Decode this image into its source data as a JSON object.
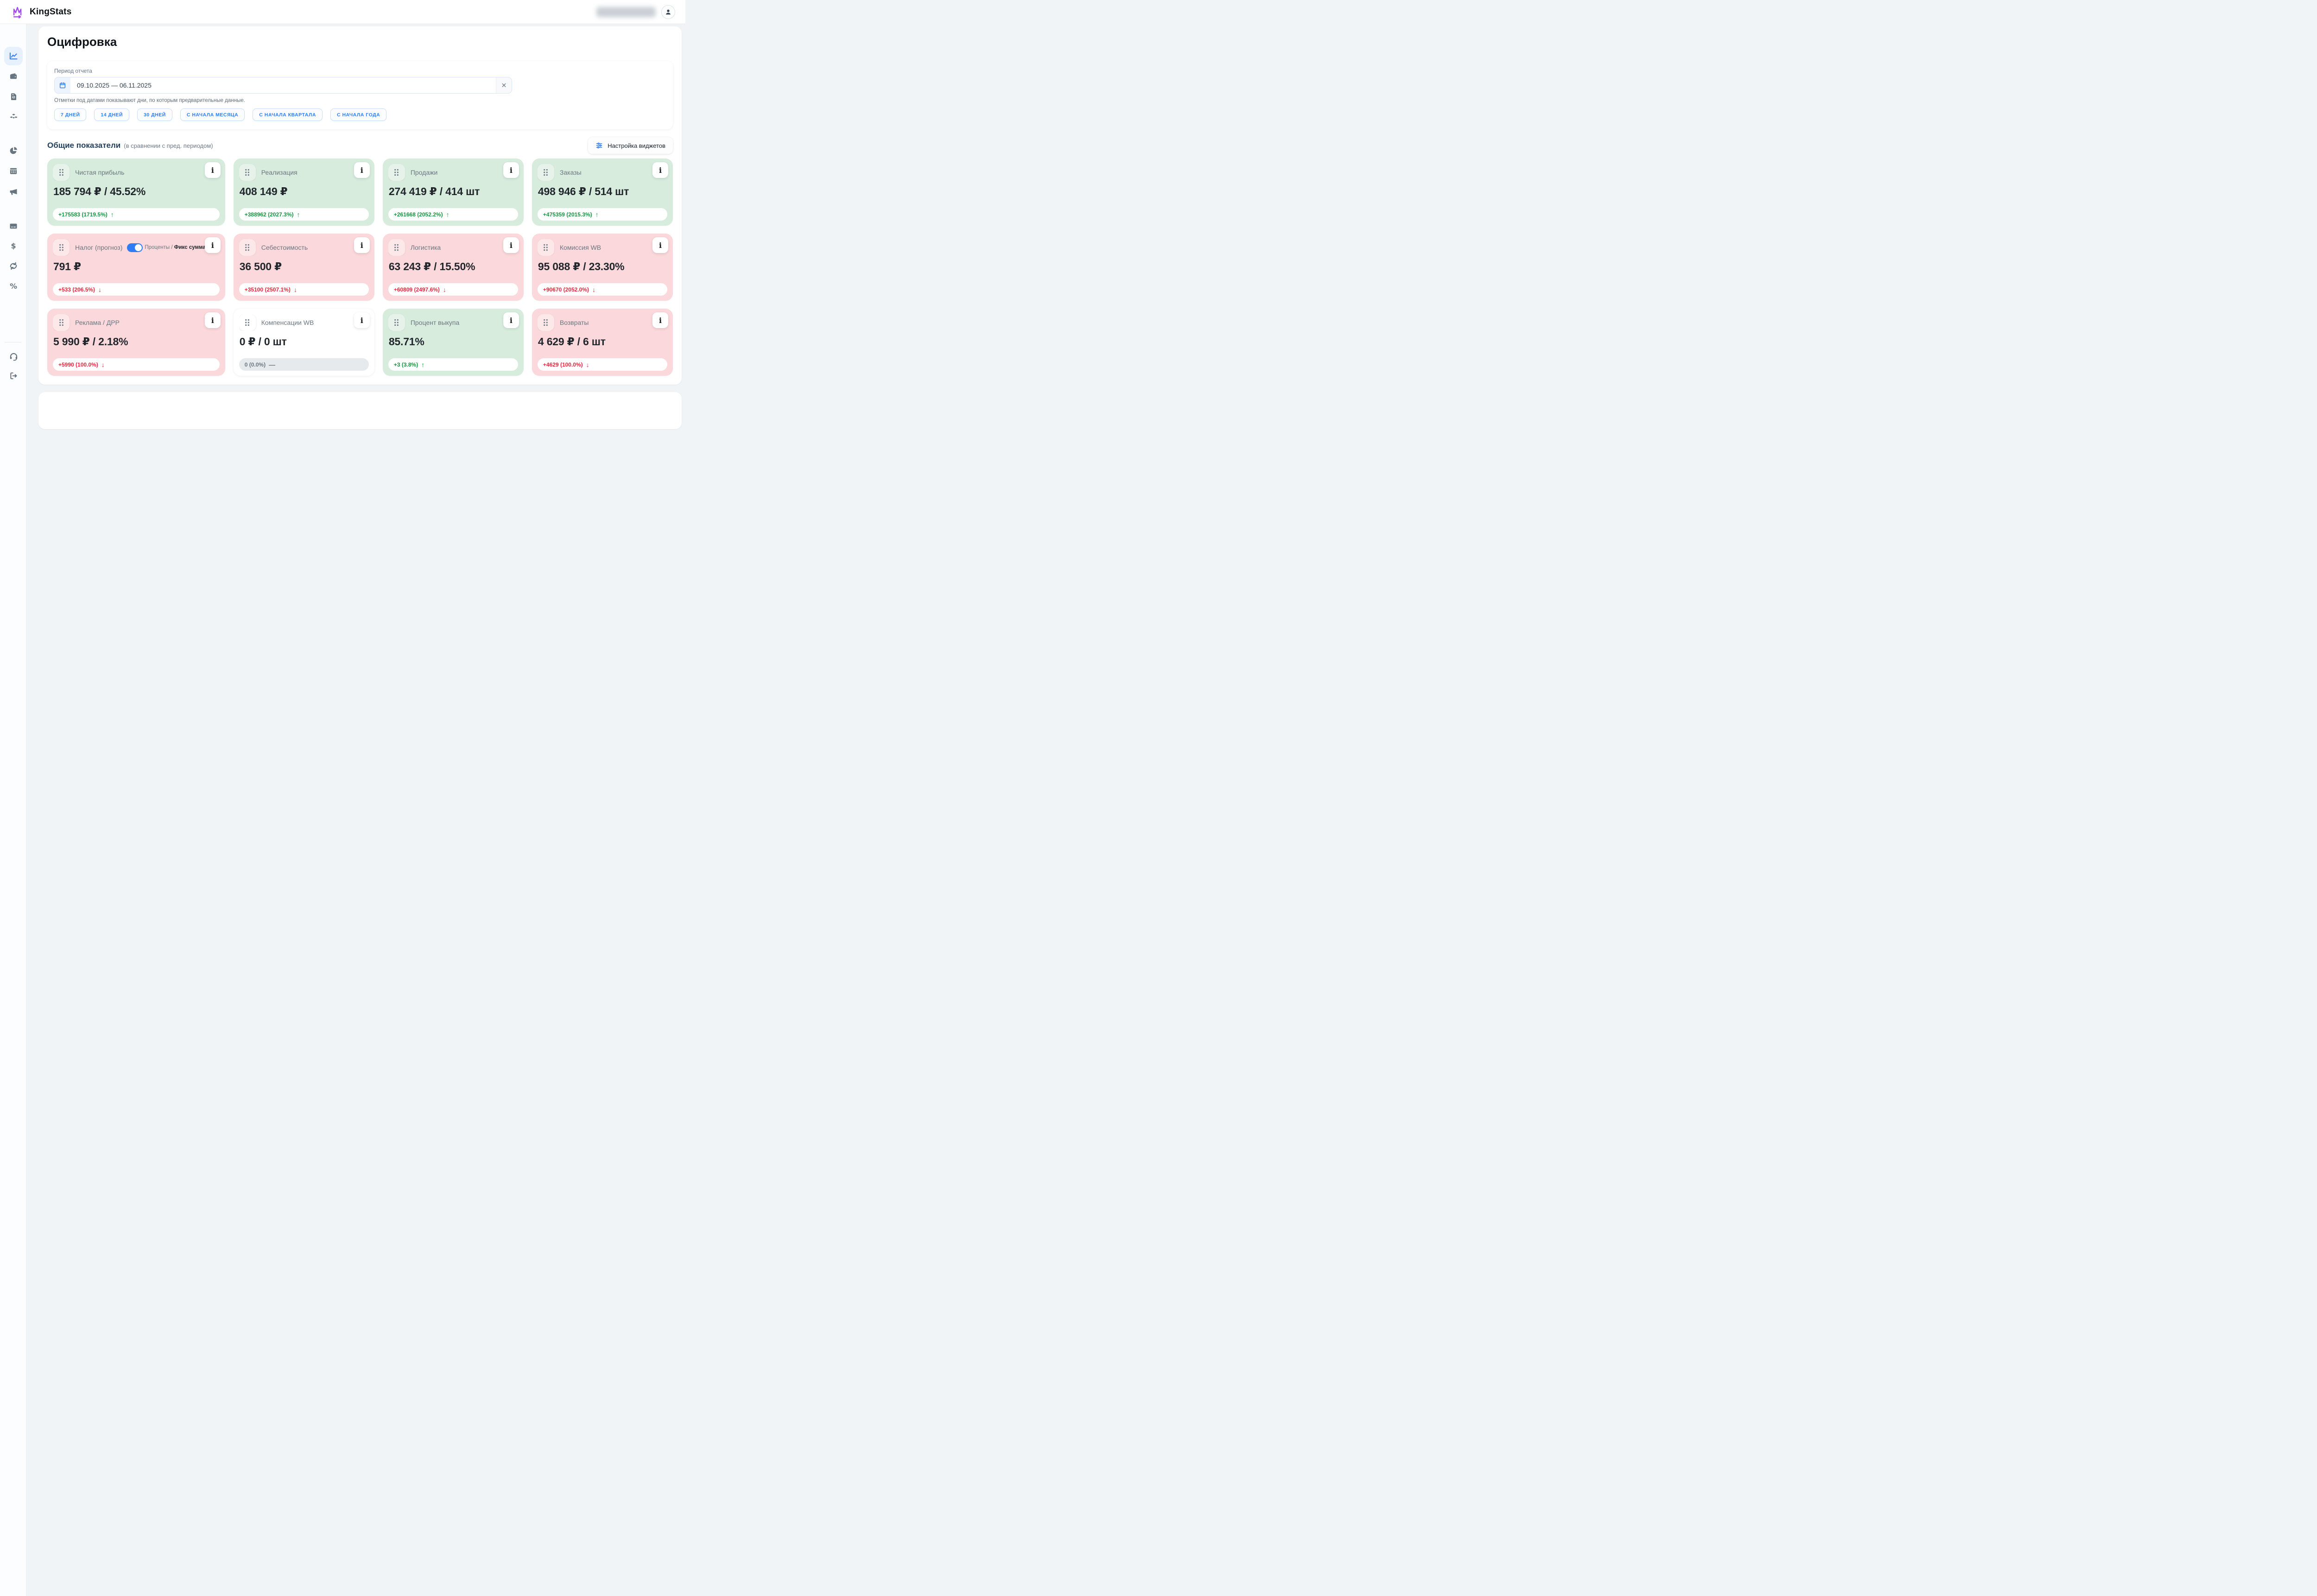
{
  "header": {
    "brand": "KingStats",
    "icons": [
      "crown-chart-logo",
      "user-avatar"
    ]
  },
  "sidebar": {
    "active": "line-chart",
    "icons": [
      "line-chart",
      "wallet",
      "receipt",
      "boxes",
      "pie-chart",
      "calendar",
      "megaphone",
      "credit-card",
      "dollar",
      "refresh",
      "percent",
      "headset",
      "logout"
    ]
  },
  "page": {
    "title": "Оцифровка",
    "period": {
      "label": "Период отчета",
      "value": "09.10.2025 — 06.11.2025",
      "hint": "Отметки под датами показывают дни, по которым предварительные данные.",
      "quick_ranges": [
        "7 ДНЕЙ",
        "14 ДНЕЙ",
        "30 ДНЕЙ",
        "С НАЧАЛА МЕСЯЦА",
        "С НАЧАЛА КВАРТАЛА",
        "С НАЧАЛА ГОДА"
      ]
    },
    "metrics_section": {
      "title": "Общие показатели",
      "subtitle": "(в сравнении с пред. периодом)",
      "widgets_button": "Настройка виджетов",
      "cards": [
        {
          "title": "Чистая прибыль",
          "value": "185 794 ₽ / 45.52%",
          "delta": "+175583 (1719.5%)",
          "trend": "up",
          "tone": "positive"
        },
        {
          "title": "Реализация",
          "value": "408 149 ₽",
          "delta": "+388962 (2027.3%)",
          "trend": "up",
          "tone": "positive"
        },
        {
          "title": "Продажи",
          "value": "274 419 ₽ / 414 шт",
          "delta": "+261668 (2052.2%)",
          "trend": "up",
          "tone": "positive"
        },
        {
          "title": "Заказы",
          "value": "498 946 ₽ / 514 шт",
          "delta": "+475359 (2015.3%)",
          "trend": "up",
          "tone": "positive"
        },
        {
          "title": "Налог (прогноз)",
          "value": "791 ₽",
          "delta": "+533 (206.5%)",
          "trend": "down",
          "tone": "negative",
          "toggle": {
            "on": true,
            "label_left": "Проценты",
            "separator": " / ",
            "label_right": "Фикс сумма"
          }
        },
        {
          "title": "Себестоимость",
          "value": "36 500 ₽",
          "delta": "+35100 (2507.1%)",
          "trend": "down",
          "tone": "negative"
        },
        {
          "title": "Логистика",
          "value": "63 243 ₽ / 15.50%",
          "delta": "+60809 (2497.6%)",
          "trend": "down",
          "tone": "negative"
        },
        {
          "title": "Комиссия WB",
          "value": "95 088 ₽ / 23.30%",
          "delta": "+90670 (2052.0%)",
          "trend": "down",
          "tone": "negative"
        },
        {
          "title": "Реклама / ДРР",
          "value": "5 990 ₽ / 2.18%",
          "delta": "+5990 (100.0%)",
          "trend": "down",
          "tone": "negative"
        },
        {
          "title": "Компенсации WB",
          "value": "0 ₽ / 0 шт",
          "delta": "0 (0.0%)",
          "trend": "flat",
          "tone": "neutral"
        },
        {
          "title": "Процент выкупа",
          "value": "85.71%",
          "delta": "+3 (3.8%)",
          "trend": "up",
          "tone": "positive"
        },
        {
          "title": "Возвраты",
          "value": "4 629 ₽ / 6 шт",
          "delta": "+4629 (100.0%)",
          "trend": "down",
          "tone": "negative"
        }
      ]
    }
  },
  "colors": {
    "accent_blue": "#2f7df6",
    "positive_bg": "#d8ecde",
    "negative_bg": "#fbd8db",
    "positive_text": "#15963f",
    "negative_text": "#ef233d",
    "logo_purple": "#a34df0"
  },
  "trend_glyphs": {
    "up": "↑",
    "down": "↓",
    "flat": "—"
  }
}
